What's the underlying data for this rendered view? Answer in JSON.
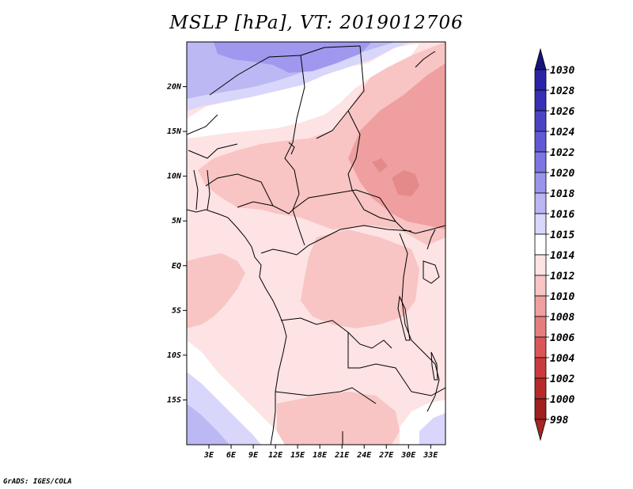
{
  "title": "MSLP [hPa], VT: 2019012706",
  "credit": "GrADS: IGES/COLA",
  "map": {
    "lat_range": [
      -20,
      25
    ],
    "lon_range": [
      0,
      35
    ],
    "lat_ticks": [
      {
        "lat": 20,
        "label": "20N"
      },
      {
        "lat": 15,
        "label": "15N"
      },
      {
        "lat": 10,
        "label": "10N"
      },
      {
        "lat": 5,
        "label": "5N"
      },
      {
        "lat": 0,
        "label": "EQ"
      },
      {
        "lat": -5,
        "label": "5S"
      },
      {
        "lat": -10,
        "label": "10S"
      },
      {
        "lat": -15,
        "label": "15S"
      }
    ],
    "lon_ticks": [
      {
        "lon": 3,
        "label": "3E"
      },
      {
        "lon": 6,
        "label": "6E"
      },
      {
        "lon": 9,
        "label": "9E"
      },
      {
        "lon": 12,
        "label": "12E"
      },
      {
        "lon": 15,
        "label": "15E"
      },
      {
        "lon": 18,
        "label": "18E"
      },
      {
        "lon": 21,
        "label": "21E"
      },
      {
        "lon": 24,
        "label": "24E"
      },
      {
        "lon": 27,
        "label": "27E"
      },
      {
        "lon": 30,
        "label": "30E"
      },
      {
        "lon": 33,
        "label": "33E"
      }
    ]
  },
  "colorbar": {
    "levels": [
      {
        "label": "1030",
        "color": "#1f1a8f"
      },
      {
        "label": "1028",
        "color": "#2a23a6"
      },
      {
        "label": "1026",
        "color": "#3530b4"
      },
      {
        "label": "1024",
        "color": "#4a44c4"
      },
      {
        "label": "1022",
        "color": "#6059d4"
      },
      {
        "label": "1020",
        "color": "#7c75e2"
      },
      {
        "label": "1018",
        "color": "#9a94ec"
      },
      {
        "label": "1016",
        "color": "#bab6f4"
      },
      {
        "label": "1015",
        "color": "#d8d6fa"
      },
      {
        "label": "1014",
        "color": "#ffffff"
      },
      {
        "label": "1012",
        "color": "#fde3e3"
      },
      {
        "label": "1010",
        "color": "#f8c4c4"
      },
      {
        "label": "1008",
        "color": "#eea0a0"
      },
      {
        "label": "1006",
        "color": "#e57e7e"
      },
      {
        "label": "1004",
        "color": "#db5656"
      },
      {
        "label": "1002",
        "color": "#cc3b3b"
      },
      {
        "label": "1000",
        "color": "#b82a2a"
      },
      {
        "label": "998",
        "color": "#a01f1f"
      }
    ],
    "top_color": "#181478",
    "bottom_color": "#a52525"
  },
  "fields": {
    "high": "#9f98ee",
    "mid_high": "#bcb8f4",
    "light_blue": "#d8d6fa",
    "white": "#ffffff",
    "pale": "#fde3e3",
    "pink": "#f8c4c4",
    "deep_pink": "#ef9f9f",
    "darkest": "#e48a8a"
  }
}
